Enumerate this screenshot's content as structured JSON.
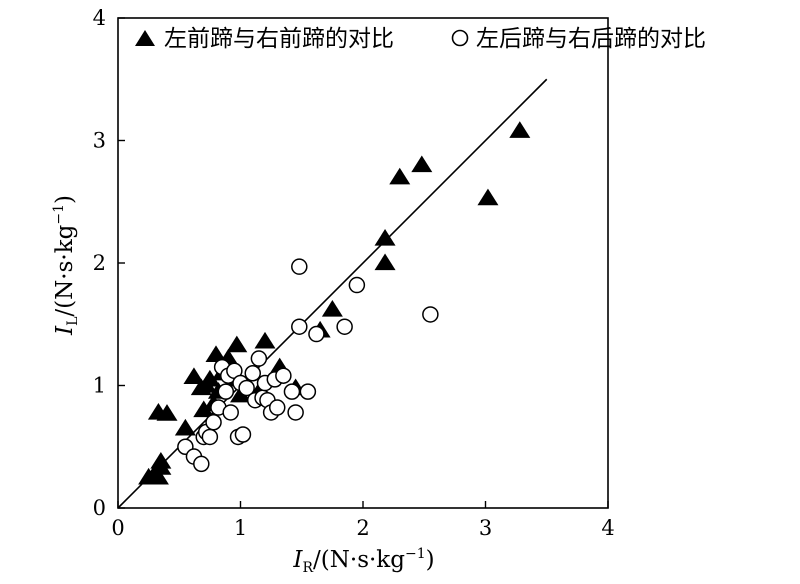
{
  "chart_data": {
    "type": "scatter",
    "xlim": [
      0,
      4
    ],
    "ylim": [
      0,
      4
    ],
    "xticks": [
      "0",
      "1",
      "2",
      "3",
      "4"
    ],
    "yticks": [
      "0",
      "1",
      "2",
      "3",
      "4"
    ],
    "grid": false,
    "legend_position": "top",
    "xlabel": {
      "main": "I",
      "sub": "R",
      "unit_prefix": "/(N·s·kg",
      "unit_sup": "−1",
      "unit_suffix": ")"
    },
    "ylabel": {
      "main": "I",
      "sub": "L",
      "unit_prefix": "/(N·s·kg",
      "unit_sup": "−1",
      "unit_suffix": ")"
    },
    "reference_line": {
      "x": [
        0,
        3.5
      ],
      "y": [
        0,
        3.5
      ]
    },
    "series": [
      {
        "name": "左前蹄与右前蹄的对比",
        "marker": "filled-triangle",
        "color": "#000000",
        "x": [
          0.25,
          0.3,
          0.33,
          0.33,
          0.35,
          0.35,
          0.4,
          0.55,
          0.62,
          0.68,
          0.7,
          0.72,
          0.75,
          0.78,
          0.8,
          0.82,
          0.85,
          0.88,
          0.9,
          0.95,
          0.97,
          1.0,
          1.15,
          1.2,
          1.32,
          1.45,
          1.65,
          1.75,
          2.18,
          2.18,
          2.3,
          2.48,
          3.02,
          3.28
        ],
        "y": [
          0.25,
          0.28,
          0.25,
          0.78,
          0.33,
          0.38,
          0.77,
          0.65,
          1.07,
          0.98,
          0.8,
          1.0,
          1.05,
          0.85,
          1.25,
          0.95,
          1.1,
          1.12,
          1.22,
          1.05,
          1.33,
          0.92,
          0.95,
          1.36,
          1.15,
          0.98,
          1.45,
          1.62,
          2.0,
          2.2,
          2.7,
          2.8,
          2.53,
          3.08
        ]
      },
      {
        "name": "左后蹄与右后蹄的对比",
        "marker": "open-circle",
        "color": "#000000",
        "x": [
          0.55,
          0.62,
          0.68,
          0.7,
          0.72,
          0.75,
          0.78,
          0.82,
          0.85,
          0.88,
          0.9,
          0.92,
          0.95,
          0.98,
          1.0,
          1.02,
          1.05,
          1.1,
          1.12,
          1.15,
          1.18,
          1.2,
          1.22,
          1.25,
          1.28,
          1.3,
          1.35,
          1.42,
          1.45,
          1.48,
          1.48,
          1.55,
          1.62,
          1.85,
          1.95,
          2.55
        ],
        "y": [
          0.5,
          0.42,
          0.36,
          0.58,
          0.62,
          0.58,
          0.7,
          0.82,
          1.15,
          0.95,
          1.08,
          0.78,
          1.12,
          0.58,
          1.02,
          0.6,
          0.98,
          1.1,
          0.88,
          1.22,
          0.9,
          1.02,
          0.88,
          0.78,
          1.05,
          0.82,
          1.08,
          0.95,
          0.78,
          1.48,
          1.97,
          0.95,
          1.42,
          1.48,
          1.82,
          1.58
        ]
      }
    ]
  }
}
